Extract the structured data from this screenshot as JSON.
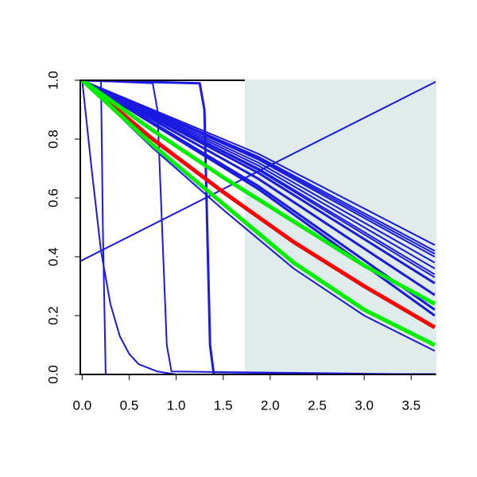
{
  "chart_data": {
    "type": "line",
    "xlim": [
      -0.02,
      3.76
    ],
    "ylim": [
      0,
      1
    ],
    "xticks": [
      {
        "value": 0,
        "label": "0.0"
      },
      {
        "value": 0.5,
        "label": "0.5"
      },
      {
        "value": 1,
        "label": "1.0"
      },
      {
        "value": 1.5,
        "label": "1.5"
      },
      {
        "value": 2,
        "label": "2.0"
      },
      {
        "value": 2.5,
        "label": "2.5"
      },
      {
        "value": 3,
        "label": "3.0"
      },
      {
        "value": 3.5,
        "label": "3.5"
      }
    ],
    "yticks": [
      {
        "value": 0,
        "label": "0.0"
      },
      {
        "value": 0.2,
        "label": "0.2"
      },
      {
        "value": 0.4,
        "label": "0.4"
      },
      {
        "value": 0.6,
        "label": "0.6"
      },
      {
        "value": 0.8,
        "label": "0.8"
      },
      {
        "value": 1,
        "label": "1.0"
      }
    ],
    "shade_xlim": [
      1.73,
      3.76
    ],
    "shade_color": "#e0ecec",
    "series": [
      {
        "color": "#1a1ae0",
        "width": 2,
        "x": [
          -0.02,
          3.76
        ],
        "values": [
          0.385,
          0.995
        ]
      },
      {
        "color": "#1a1ae0",
        "width": 2,
        "x": [
          0,
          0.1,
          0.2,
          0.3,
          0.4,
          0.5,
          0.6,
          0.8,
          1.0
        ],
        "values": [
          1,
          0.7,
          0.42,
          0.24,
          0.13,
          0.07,
          0.035,
          0.01,
          0
        ]
      },
      {
        "color": "#1a1ae0",
        "width": 2,
        "x": [
          0,
          0.2,
          0.22,
          0.25,
          3.76
        ],
        "values": [
          1,
          1,
          0.5,
          0,
          0
        ]
      },
      {
        "color": "#1a1ae0",
        "width": 2,
        "x": [
          0,
          0.75,
          0.8,
          0.85,
          0.9,
          0.95,
          3.76
        ],
        "values": [
          1,
          0.99,
          0.9,
          0.5,
          0.1,
          0.01,
          0
        ]
      },
      {
        "color": "#1a1ae0",
        "width": 3,
        "x": [
          0,
          1.25,
          1.3,
          1.33,
          1.36,
          1.4,
          3.76
        ],
        "values": [
          1,
          0.99,
          0.9,
          0.5,
          0.1,
          0,
          0
        ]
      },
      {
        "color": "#1a1ae0",
        "width": 2,
        "x": [
          0,
          1.875,
          3.75
        ],
        "values": [
          1,
          0.75,
          0.44
        ]
      },
      {
        "color": "#1a1ae0",
        "width": 2,
        "x": [
          0,
          1.875,
          3.75
        ],
        "values": [
          1,
          0.74,
          0.42
        ]
      },
      {
        "color": "#1a1ae0",
        "width": 2,
        "x": [
          0,
          1.875,
          3.75
        ],
        "values": [
          1,
          0.735,
          0.41
        ]
      },
      {
        "color": "#1a1ae0",
        "width": 2,
        "x": [
          0,
          1.875,
          3.75
        ],
        "values": [
          1,
          0.73,
          0.4
        ]
      },
      {
        "color": "#1a1ae0",
        "width": 2,
        "x": [
          0,
          1.875,
          3.75
        ],
        "values": [
          1,
          0.72,
          0.38
        ]
      },
      {
        "color": "#1a1ae0",
        "width": 2,
        "x": [
          0,
          1.875,
          3.75
        ],
        "values": [
          1,
          0.71,
          0.36
        ]
      },
      {
        "color": "#1a1ae0",
        "width": 2,
        "x": [
          0,
          1.875,
          3.75
        ],
        "values": [
          1,
          0.7,
          0.34
        ]
      },
      {
        "color": "#1a1ae0",
        "width": 2,
        "x": [
          0,
          1.875,
          3.75
        ],
        "values": [
          1,
          0.695,
          0.33
        ]
      },
      {
        "color": "#1a1ae0",
        "width": 3,
        "x": [
          0,
          1.875,
          3.75
        ],
        "values": [
          1,
          0.685,
          0.31
        ]
      },
      {
        "color": "#1a1ae0",
        "width": 3,
        "x": [
          0,
          1.875,
          3.75
        ],
        "values": [
          1,
          0.665,
          0.27
        ]
      },
      {
        "color": "#1a1ae0",
        "width": 3,
        "x": [
          0,
          1.875,
          3.75
        ],
        "values": [
          1,
          0.64,
          0.22
        ]
      },
      {
        "color": "#1a1ae0",
        "width": 3,
        "x": [
          0,
          1.875,
          3.75
        ],
        "values": [
          1,
          0.63,
          0.2
        ]
      },
      {
        "color": "#1a1ae0",
        "width": 2,
        "x": [
          0,
          0.75,
          1.5,
          2.25,
          3,
          3.75
        ],
        "values": [
          1,
          0.77,
          0.56,
          0.36,
          0.2,
          0.08
        ]
      },
      {
        "color": "#ff0000",
        "width": 5,
        "x": [
          0,
          0.75,
          1.5,
          2.25,
          3,
          3.75
        ],
        "values": [
          1,
          0.8,
          0.62,
          0.45,
          0.3,
          0.16
        ]
      },
      {
        "color": "#00ee00",
        "width": 5,
        "x": [
          0,
          0.75,
          1.5,
          2.25,
          3,
          3.75
        ],
        "values": [
          1,
          0.83,
          0.67,
          0.52,
          0.37,
          0.24
        ]
      },
      {
        "color": "#00ee00",
        "width": 5,
        "x": [
          0,
          0.75,
          1.5,
          2.25,
          3,
          3.75
        ],
        "values": [
          1,
          0.78,
          0.58,
          0.38,
          0.22,
          0.1
        ]
      }
    ]
  }
}
